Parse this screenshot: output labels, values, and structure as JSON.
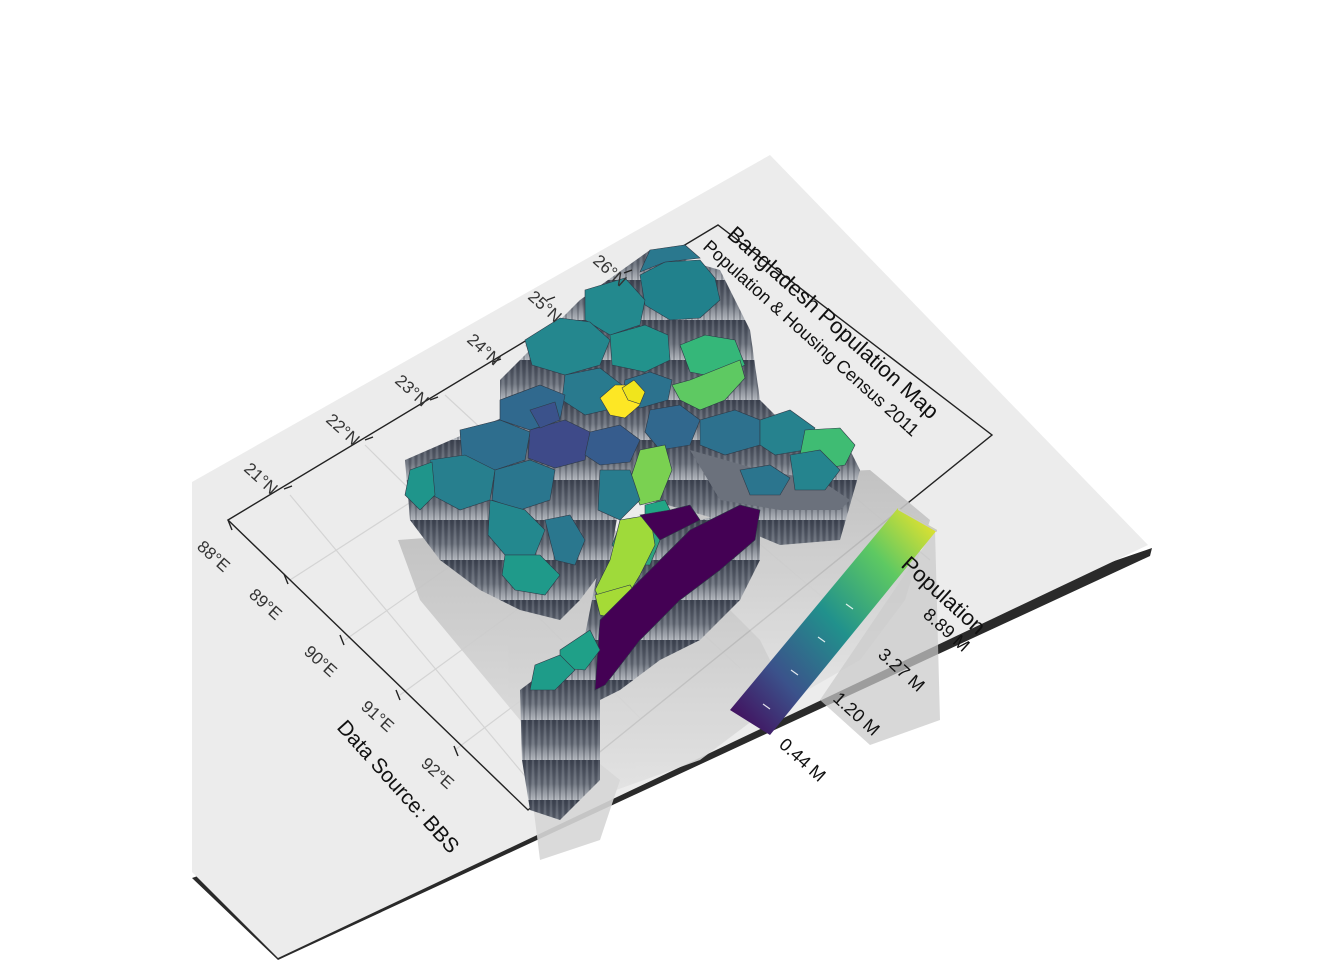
{
  "map": {
    "title": "Bangladesh Population Map",
    "subtitle": "Population & Housing Census 2011",
    "caption": "Data Source: BBS",
    "longitude_ticks": [
      "88°E",
      "89°E",
      "90°E",
      "91°E",
      "92°E"
    ],
    "latitude_ticks": [
      "21°N",
      "22°N",
      "23°N",
      "24°N",
      "25°N",
      "26°N"
    ],
    "legend": {
      "title": "Population",
      "labels": [
        "0.44 M",
        "1.20 M",
        "3.27 M",
        "8.89 M"
      ],
      "colors": [
        "#440154",
        "#3b528b",
        "#21918c",
        "#5ec962",
        "#fde725"
      ]
    },
    "style": {
      "board_color": "#ececec",
      "board_edge": "#2a2a2a",
      "grid_color": "#d4d4d4",
      "shadow_color": "#bdbdbd",
      "extrusion_color": "#5d6470"
    }
  }
}
